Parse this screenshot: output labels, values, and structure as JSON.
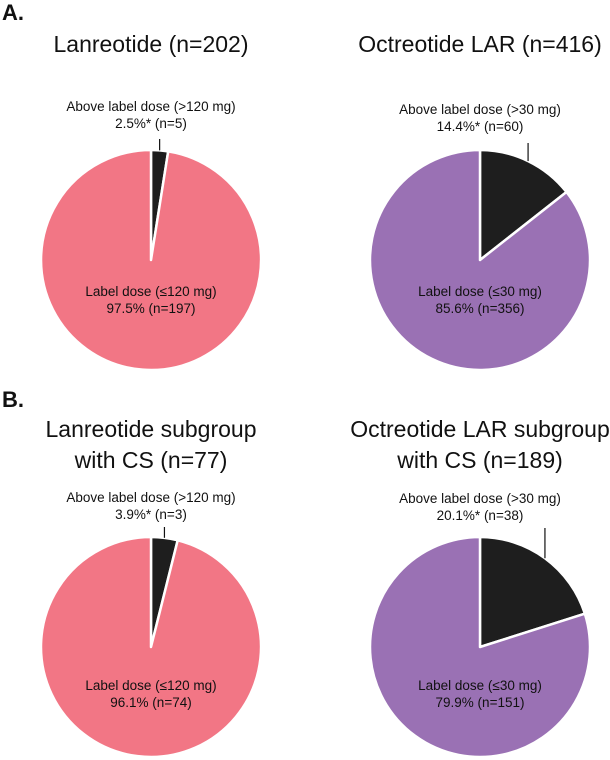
{
  "colors": {
    "lanreotide": "#F27685",
    "octreotide": "#9A71B4",
    "above": "#1E1E1E",
    "stroke": "#ffffff"
  },
  "panels": [
    {
      "label": "A."
    },
    {
      "label": "B."
    }
  ],
  "chart_data": [
    {
      "type": "pie",
      "panel": "A.",
      "title": [
        "Lanreotide (n=202)"
      ],
      "color_key": "lanreotide",
      "slices": [
        {
          "name": "Above label dose (>120 mg)",
          "pct_text": "2.5%* (n=5)",
          "value": 2.5,
          "n": 5
        },
        {
          "name": "Label dose (≤120 mg)",
          "pct_text": "97.5% (n=197)",
          "value": 97.5,
          "n": 197
        }
      ]
    },
    {
      "type": "pie",
      "panel": "A.",
      "title": [
        "Octreotide LAR (n=416)"
      ],
      "color_key": "octreotide",
      "slices": [
        {
          "name": "Above label dose (>30 mg)",
          "pct_text": "14.4%* (n=60)",
          "value": 14.4,
          "n": 60
        },
        {
          "name": "Label dose (≤30 mg)",
          "pct_text": "85.6% (n=356)",
          "value": 85.6,
          "n": 356
        }
      ]
    },
    {
      "type": "pie",
      "panel": "B.",
      "title": [
        "Lanreotide subgroup",
        "with CS (n=77)"
      ],
      "color_key": "lanreotide",
      "slices": [
        {
          "name": "Above label dose (>120 mg)",
          "pct_text": "3.9%* (n=3)",
          "value": 3.9,
          "n": 3
        },
        {
          "name": "Label dose (≤120 mg)",
          "pct_text": "96.1% (n=74)",
          "value": 96.1,
          "n": 74
        }
      ]
    },
    {
      "type": "pie",
      "panel": "B.",
      "title": [
        "Octreotide LAR subgroup",
        "with CS (n=189)"
      ],
      "color_key": "octreotide",
      "slices": [
        {
          "name": "Above label dose (>30 mg)",
          "pct_text": "20.1%* (n=38)",
          "value": 20.1,
          "n": 38
        },
        {
          "name": "Label dose (≤30 mg)",
          "pct_text": "79.9% (n=151)",
          "value": 79.9,
          "n": 151
        }
      ]
    }
  ]
}
